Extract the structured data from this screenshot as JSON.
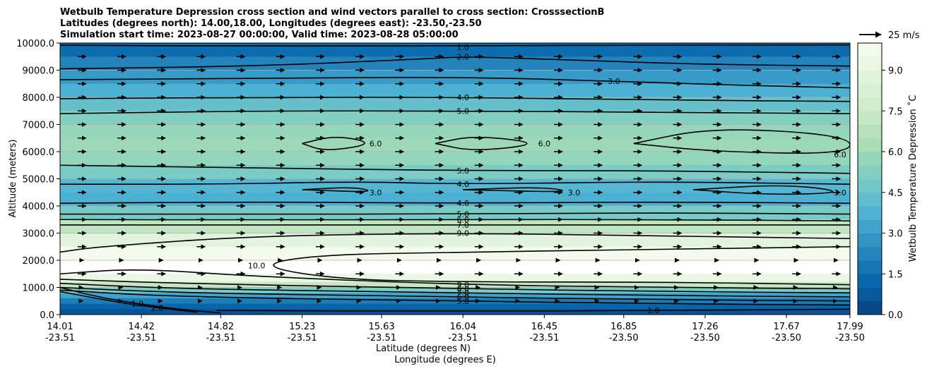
{
  "chart_data": {
    "type": "contour",
    "title_lines": [
      "Wetbulb Temperature Depression cross section and wind vectors parallel to cross section: CrosssectionB",
      "Latitudes (degrees north): 14.00,18.00, Longitudes (degrees east): -23.50,-23.50",
      "Simulation start time: 2023-08-27 00:00:00, Valid time: 2023-08-28 05:00:00"
    ],
    "ylabel": "Altitude (meters)",
    "xlabel_lines": [
      "Latitude (degrees N)",
      "Longitude (degrees E)"
    ],
    "ylim": [
      0,
      10000
    ],
    "y_ticks": [
      {
        "value": 0,
        "label": "0.0"
      },
      {
        "value": 1000,
        "label": "1000.0"
      },
      {
        "value": 2000,
        "label": "2000.0"
      },
      {
        "value": 3000,
        "label": "3000.0"
      },
      {
        "value": 4000,
        "label": "4000.0"
      },
      {
        "value": 5000,
        "label": "5000.0"
      },
      {
        "value": 6000,
        "label": "6000.0"
      },
      {
        "value": 7000,
        "label": "7000.0"
      },
      {
        "value": 8000,
        "label": "8000.0"
      },
      {
        "value": 9000,
        "label": "9000.0"
      },
      {
        "value": 10000,
        "label": "10000.0"
      }
    ],
    "xlim": [
      14.01,
      17.99
    ],
    "x_ticks": [
      {
        "lat": 14.01,
        "lat_label": "14.01",
        "lon_label": "-23.51"
      },
      {
        "lat": 14.42,
        "lat_label": "14.42",
        "lon_label": "-23.51"
      },
      {
        "lat": 14.82,
        "lat_label": "14.82",
        "lon_label": "-23.51"
      },
      {
        "lat": 15.23,
        "lat_label": "15.23",
        "lon_label": "-23.51"
      },
      {
        "lat": 15.63,
        "lat_label": "15.63",
        "lon_label": "-23.51"
      },
      {
        "lat": 16.04,
        "lat_label": "16.04",
        "lon_label": "-23.51"
      },
      {
        "lat": 16.45,
        "lat_label": "16.45",
        "lon_label": "-23.51"
      },
      {
        "lat": 16.85,
        "lat_label": "16.85",
        "lon_label": "-23.50"
      },
      {
        "lat": 17.26,
        "lat_label": "17.26",
        "lon_label": "-23.50"
      },
      {
        "lat": 17.67,
        "lat_label": "17.67",
        "lon_label": "-23.50"
      },
      {
        "lat": 17.99,
        "lat_label": "17.99",
        "lon_label": "-23.50"
      }
    ],
    "grid": "horizontal",
    "colorbar": {
      "label": "Wetbulb Temperature Depression ˚C",
      "min": 0,
      "max": 10,
      "step": 0.5,
      "ticks": [
        {
          "value": 0,
          "label": "0.0"
        },
        {
          "value": 1.5,
          "label": "1.5"
        },
        {
          "value": 3,
          "label": "3.0"
        },
        {
          "value": 4.5,
          "label": "4.5"
        },
        {
          "value": 6,
          "label": "6.0"
        },
        {
          "value": 7.5,
          "label": "7.5"
        },
        {
          "value": 9,
          "label": "9.0"
        }
      ],
      "colormap": [
        "#084081",
        "#0868ac",
        "#2b8cbe",
        "#4eb3d3",
        "#7bccc4",
        "#a8ddb5",
        "#ccebc5",
        "#e0f3db",
        "#f7fcf0"
      ]
    },
    "wind_key": {
      "label": "25 m/s",
      "speed": 25
    },
    "profile": [
      {
        "alt": 10000,
        "value": 1.0
      },
      {
        "alt": 9500,
        "value": 1.8
      },
      {
        "alt": 9000,
        "value": 2.6
      },
      {
        "alt": 8500,
        "value": 3.3
      },
      {
        "alt": 8000,
        "value": 4.0
      },
      {
        "alt": 7500,
        "value": 4.8
      },
      {
        "alt": 7000,
        "value": 5.6
      },
      {
        "alt": 6500,
        "value": 5.9
      },
      {
        "alt": 6000,
        "value": 6.0
      },
      {
        "alt": 5500,
        "value": 5.4
      },
      {
        "alt": 5000,
        "value": 4.6
      },
      {
        "alt": 4500,
        "value": 3.3
      },
      {
        "alt": 4000,
        "value": 4.0
      },
      {
        "alt": 3500,
        "value": 5.8
      },
      {
        "alt": 3000,
        "value": 8.2
      },
      {
        "alt": 2500,
        "value": 9.6
      },
      {
        "alt": 2000,
        "value": 10.0
      },
      {
        "alt": 1500,
        "value": 10.0
      },
      {
        "alt": 1200,
        "value": 8.5
      },
      {
        "alt": 1000,
        "value": 6.0
      },
      {
        "alt": 800,
        "value": 4.0
      },
      {
        "alt": 600,
        "value": 2.5
      },
      {
        "alt": 400,
        "value": 1.5
      },
      {
        "alt": 200,
        "value": 0.8
      },
      {
        "alt": 0,
        "value": 0.4
      }
    ],
    "contours": [
      {
        "label": "1.0",
        "pts": [
          [
            14.01,
            1000
          ],
          [
            14.2,
            650
          ],
          [
            14.4,
            400
          ],
          [
            14.6,
            200
          ],
          [
            14.82,
            60
          ]
        ]
      },
      {
        "label": "2.0",
        "pts": [
          [
            14.01,
            850
          ],
          [
            14.3,
            450
          ],
          [
            14.5,
            250
          ],
          [
            14.7,
            90
          ]
        ]
      },
      {
        "label": "1.0",
        "pts": [
          [
            14.01,
            9920
          ],
          [
            15.0,
            9880
          ],
          [
            16.04,
            9900
          ],
          [
            17.0,
            9920
          ],
          [
            17.99,
            9930
          ]
        ]
      },
      {
        "label": "2.0",
        "pts": [
          [
            14.01,
            9050
          ],
          [
            15.0,
            9150
          ],
          [
            15.8,
            9400
          ],
          [
            16.04,
            9500
          ],
          [
            16.5,
            9400
          ],
          [
            17.2,
            9220
          ],
          [
            17.99,
            9150
          ]
        ]
      },
      {
        "label": "3.0",
        "pts": [
          [
            14.01,
            8650
          ],
          [
            15.0,
            8700
          ],
          [
            16.04,
            8750
          ],
          [
            16.8,
            8600
          ],
          [
            17.4,
            8450
          ],
          [
            17.99,
            8350
          ]
        ]
      },
      {
        "label": "4.0",
        "pts": [
          [
            14.01,
            7950
          ],
          [
            15.0,
            8000
          ],
          [
            16.04,
            8000
          ],
          [
            17.0,
            7900
          ],
          [
            17.99,
            7850
          ]
        ]
      },
      {
        "label": "5.0",
        "pts": [
          [
            14.01,
            7400
          ],
          [
            15.0,
            7500
          ],
          [
            16.04,
            7500
          ],
          [
            17.0,
            7450
          ],
          [
            17.99,
            7400
          ]
        ]
      },
      {
        "label": "6.0",
        "pts": [
          [
            15.23,
            6300
          ],
          [
            15.4,
            6600
          ],
          [
            15.6,
            6300
          ],
          [
            15.35,
            6000
          ],
          [
            15.23,
            6300
          ]
        ]
      },
      {
        "label": "6.0",
        "pts": [
          [
            15.9,
            6300
          ],
          [
            16.1,
            6600
          ],
          [
            16.45,
            6300
          ],
          [
            16.1,
            6000
          ],
          [
            15.9,
            6300
          ]
        ]
      },
      {
        "label": "6.0",
        "pts": [
          [
            16.9,
            6300
          ],
          [
            17.3,
            6900
          ],
          [
            17.99,
            6600
          ],
          [
            17.99,
            5900
          ],
          [
            17.3,
            6000
          ],
          [
            16.9,
            6300
          ]
        ]
      },
      {
        "label": "5.0",
        "pts": [
          [
            14.01,
            5500
          ],
          [
            15.0,
            5400
          ],
          [
            16.04,
            5300
          ],
          [
            17.0,
            5300
          ],
          [
            17.99,
            5200
          ]
        ]
      },
      {
        "label": "4.0",
        "pts": [
          [
            14.01,
            4800
          ],
          [
            14.82,
            4800
          ],
          [
            15.5,
            4900
          ],
          [
            16.04,
            4800
          ],
          [
            17.0,
            4900
          ],
          [
            17.99,
            4800
          ]
        ]
      },
      {
        "label": "3.0",
        "pts": [
          [
            15.23,
            4600
          ],
          [
            15.5,
            4700
          ],
          [
            15.6,
            4500
          ],
          [
            15.23,
            4600
          ]
        ]
      },
      {
        "label": "3.0",
        "pts": [
          [
            16.04,
            4600
          ],
          [
            16.45,
            4700
          ],
          [
            16.6,
            4500
          ],
          [
            16.04,
            4600
          ]
        ]
      },
      {
        "label": "3.0",
        "pts": [
          [
            17.2,
            4600
          ],
          [
            17.67,
            4800
          ],
          [
            17.99,
            4500
          ],
          [
            17.6,
            4400
          ],
          [
            17.2,
            4600
          ]
        ]
      },
      {
        "label": "4.0",
        "pts": [
          [
            14.01,
            4100
          ],
          [
            15.0,
            4150
          ],
          [
            16.04,
            4100
          ],
          [
            17.0,
            4150
          ],
          [
            17.99,
            4100
          ]
        ]
      },
      {
        "label": "5.0",
        "pts": [
          [
            14.01,
            3700
          ],
          [
            15.0,
            3700
          ],
          [
            16.04,
            3700
          ],
          [
            17.0,
            3750
          ],
          [
            17.99,
            3700
          ]
        ]
      },
      {
        "label": "6.0",
        "pts": [
          [
            14.01,
            3500
          ],
          [
            15.0,
            3480
          ],
          [
            16.04,
            3500
          ],
          [
            17.0,
            3500
          ],
          [
            17.99,
            3450
          ]
        ]
      },
      {
        "label": "7.0",
        "pts": [
          [
            14.01,
            3300
          ],
          [
            15.0,
            3300
          ],
          [
            16.04,
            3300
          ],
          [
            17.0,
            3300
          ],
          [
            17.99,
            3300
          ]
        ]
      },
      {
        "label": "9.0",
        "pts": [
          [
            14.01,
            2300
          ],
          [
            14.2,
            2500
          ],
          [
            15.0,
            2900
          ],
          [
            16.04,
            3000
          ],
          [
            17.0,
            2900
          ],
          [
            17.99,
            2800
          ]
        ]
      },
      {
        "label": "10.0",
        "pts": [
          [
            17.99,
            2500
          ],
          [
            17.0,
            2400
          ],
          [
            16.04,
            2300
          ],
          [
            15.3,
            2200
          ],
          [
            15.0,
            1800
          ],
          [
            15.4,
            1300
          ],
          [
            16.04,
            1200
          ],
          [
            17.0,
            1200
          ],
          [
            17.99,
            1100
          ]
        ]
      },
      {
        "label": "9.0",
        "pts": [
          [
            14.01,
            1500
          ],
          [
            14.4,
            1700
          ],
          [
            15.0,
            1400
          ],
          [
            16.04,
            1100
          ],
          [
            17.0,
            1000
          ],
          [
            17.99,
            950
          ]
        ]
      },
      {
        "label": "8.0",
        "pts": [
          [
            14.01,
            1300
          ],
          [
            14.6,
            1150
          ],
          [
            16.04,
            950
          ],
          [
            17.0,
            850
          ],
          [
            17.99,
            800
          ]
        ]
      },
      {
        "label": "7.0",
        "pts": [
          [
            14.01,
            1150
          ],
          [
            14.6,
            950
          ],
          [
            16.04,
            800
          ],
          [
            17.0,
            700
          ],
          [
            17.99,
            650
          ]
        ]
      },
      {
        "label": "6.0",
        "pts": [
          [
            14.01,
            1000
          ],
          [
            14.6,
            800
          ],
          [
            16.04,
            650
          ],
          [
            17.0,
            550
          ],
          [
            17.99,
            500
          ]
        ]
      },
      {
        "label": "5.0",
        "pts": [
          [
            14.01,
            900
          ],
          [
            14.6,
            650
          ],
          [
            16.04,
            500
          ],
          [
            17.0,
            400
          ],
          [
            17.99,
            350
          ]
        ]
      },
      {
        "label": "1.0",
        "pts": [
          [
            14.8,
            150
          ],
          [
            16.04,
            120
          ],
          [
            17.0,
            150
          ],
          [
            17.99,
            200
          ]
        ]
      }
    ]
  }
}
